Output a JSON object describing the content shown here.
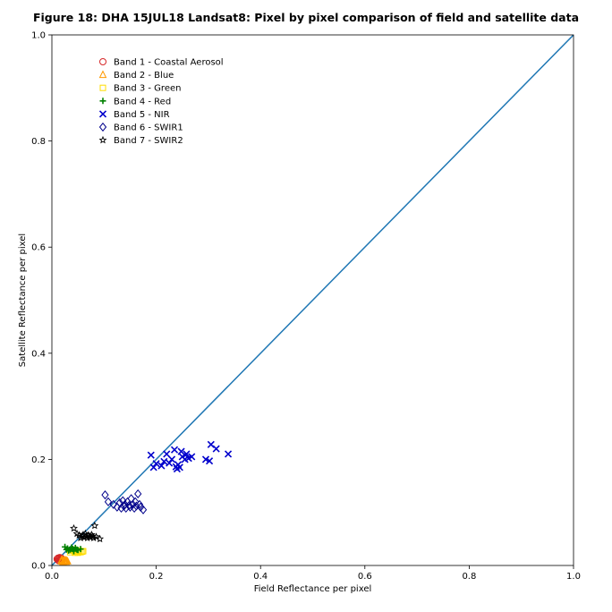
{
  "chart_data": {
    "type": "scatter",
    "title": "Figure 18: DHA 15JUL18  Landsat8: Pixel by pixel comparison of field and satellite data",
    "xlabel": "Field Reflectance per pixel",
    "ylabel": "Satellite Reflectance per pixel",
    "xlim": [
      0,
      1
    ],
    "ylim": [
      0,
      1
    ],
    "xticks": [
      "0.0",
      "0.2",
      "0.4",
      "0.6",
      "0.8",
      "1.0"
    ],
    "yticks": [
      "0.0",
      "0.2",
      "0.4",
      "0.6",
      "0.8",
      "1.0"
    ],
    "grid": false,
    "legend_position": "top-left",
    "reference_line": {
      "x": [
        0,
        1
      ],
      "y": [
        0,
        1
      ],
      "color": "#1f77b4"
    },
    "series": [
      {
        "name": "Band 1 - Coastal Aerosol",
        "marker": "circle-open",
        "color": "#d62728",
        "points": [
          [
            0.01,
            0.012
          ],
          [
            0.012,
            0.01
          ],
          [
            0.014,
            0.013
          ],
          [
            0.016,
            0.011
          ],
          [
            0.018,
            0.014
          ],
          [
            0.013,
            0.009
          ],
          [
            0.02,
            0.012
          ],
          [
            0.015,
            0.015
          ],
          [
            0.011,
            0.013
          ],
          [
            0.017,
            0.01
          ],
          [
            0.019,
            0.011
          ],
          [
            0.012,
            0.014
          ]
        ]
      },
      {
        "name": "Band 2 - Blue",
        "marker": "triangle-open",
        "color": "#ff9900",
        "points": [
          [
            0.018,
            0.008
          ],
          [
            0.02,
            0.01
          ],
          [
            0.022,
            0.007
          ],
          [
            0.024,
            0.009
          ],
          [
            0.026,
            0.01
          ],
          [
            0.021,
            0.006
          ],
          [
            0.025,
            0.008
          ],
          [
            0.028,
            0.009
          ],
          [
            0.019,
            0.011
          ],
          [
            0.023,
            0.01
          ],
          [
            0.027,
            0.007
          ],
          [
            0.03,
            0.008
          ]
        ]
      },
      {
        "name": "Band 3 - Green",
        "marker": "square-open",
        "color": "#ffdd00",
        "points": [
          [
            0.035,
            0.025
          ],
          [
            0.04,
            0.028
          ],
          [
            0.045,
            0.026
          ],
          [
            0.05,
            0.024
          ],
          [
            0.042,
            0.03
          ],
          [
            0.048,
            0.027
          ],
          [
            0.055,
            0.025
          ],
          [
            0.038,
            0.029
          ],
          [
            0.052,
            0.028
          ],
          [
            0.058,
            0.026
          ],
          [
            0.044,
            0.024
          ],
          [
            0.06,
            0.027
          ]
        ]
      },
      {
        "name": "Band 4 - Red",
        "marker": "plus",
        "color": "#008000",
        "points": [
          [
            0.025,
            0.035
          ],
          [
            0.03,
            0.032
          ],
          [
            0.035,
            0.03
          ],
          [
            0.04,
            0.031
          ],
          [
            0.045,
            0.033
          ],
          [
            0.05,
            0.029
          ],
          [
            0.055,
            0.031
          ],
          [
            0.032,
            0.028
          ],
          [
            0.038,
            0.034
          ],
          [
            0.042,
            0.027
          ],
          [
            0.048,
            0.03
          ],
          [
            0.028,
            0.03
          ]
        ]
      },
      {
        "name": "Band 5 - NIR",
        "marker": "x",
        "color": "#0000cc",
        "points": [
          [
            0.19,
            0.208
          ],
          [
            0.195,
            0.185
          ],
          [
            0.2,
            0.192
          ],
          [
            0.21,
            0.188
          ],
          [
            0.215,
            0.196
          ],
          [
            0.22,
            0.21
          ],
          [
            0.225,
            0.193
          ],
          [
            0.23,
            0.2
          ],
          [
            0.235,
            0.218
          ],
          [
            0.238,
            0.186
          ],
          [
            0.24,
            0.182
          ],
          [
            0.242,
            0.19
          ],
          [
            0.245,
            0.185
          ],
          [
            0.248,
            0.215
          ],
          [
            0.25,
            0.205
          ],
          [
            0.255,
            0.2
          ],
          [
            0.258,
            0.21
          ],
          [
            0.262,
            0.202
          ],
          [
            0.268,
            0.205
          ],
          [
            0.295,
            0.2
          ],
          [
            0.302,
            0.197
          ],
          [
            0.305,
            0.228
          ],
          [
            0.315,
            0.22
          ],
          [
            0.338,
            0.21
          ]
        ]
      },
      {
        "name": "Band 6 - SWIR1",
        "marker": "diamond-open",
        "color": "#00008b",
        "points": [
          [
            0.102,
            0.133
          ],
          [
            0.108,
            0.12
          ],
          [
            0.118,
            0.115
          ],
          [
            0.125,
            0.11
          ],
          [
            0.13,
            0.118
          ],
          [
            0.133,
            0.108
          ],
          [
            0.136,
            0.122
          ],
          [
            0.138,
            0.112
          ],
          [
            0.14,
            0.115
          ],
          [
            0.142,
            0.108
          ],
          [
            0.145,
            0.12
          ],
          [
            0.148,
            0.113
          ],
          [
            0.15,
            0.11
          ],
          [
            0.152,
            0.126
          ],
          [
            0.155,
            0.115
          ],
          [
            0.158,
            0.108
          ],
          [
            0.16,
            0.12
          ],
          [
            0.162,
            0.112
          ],
          [
            0.165,
            0.135
          ],
          [
            0.168,
            0.115
          ],
          [
            0.17,
            0.11
          ],
          [
            0.175,
            0.105
          ]
        ]
      },
      {
        "name": "Band 7 - SWIR2",
        "marker": "star",
        "color": "#000000",
        "points": [
          [
            0.042,
            0.07
          ],
          [
            0.048,
            0.06
          ],
          [
            0.052,
            0.057
          ],
          [
            0.055,
            0.052
          ],
          [
            0.058,
            0.055
          ],
          [
            0.06,
            0.058
          ],
          [
            0.062,
            0.053
          ],
          [
            0.064,
            0.06
          ],
          [
            0.066,
            0.055
          ],
          [
            0.068,
            0.052
          ],
          [
            0.07,
            0.057
          ],
          [
            0.072,
            0.055
          ],
          [
            0.074,
            0.053
          ],
          [
            0.076,
            0.058
          ],
          [
            0.078,
            0.055
          ],
          [
            0.08,
            0.052
          ],
          [
            0.082,
            0.075
          ],
          [
            0.085,
            0.054
          ],
          [
            0.092,
            0.05
          ]
        ]
      }
    ]
  }
}
